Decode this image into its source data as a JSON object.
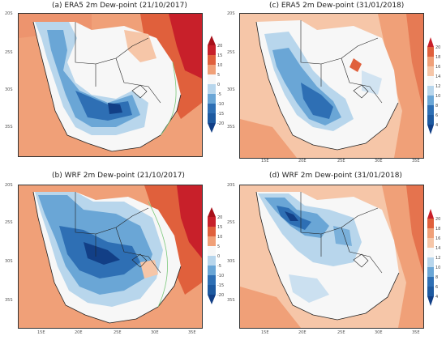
{
  "panels": [
    {
      "id": "a",
      "title": "(a) ERA5 2m Dew-point (21/10/2017)",
      "lat_labels": [
        "20S",
        "25S",
        "30S",
        "35S"
      ],
      "lon_labels": [],
      "colorbar_labels": [
        "20",
        "15",
        "10",
        "5",
        "0",
        "-5",
        "-10",
        "-15",
        "-20"
      ]
    },
    {
      "id": "c",
      "title": "(c) ERA5 2m Dew-point (31/01/2018)",
      "lat_labels": [
        "20S",
        "25S",
        "30S",
        "35S"
      ],
      "lon_labels": [
        "15E",
        "20E",
        "25E",
        "30E",
        "35E"
      ],
      "colorbar_labels": [
        "20",
        "18",
        "16",
        "14",
        "12",
        "10",
        "8",
        "6",
        "4"
      ]
    },
    {
      "id": "b",
      "title": "(b) WRF 2m Dew-point (21/10/2017)",
      "lat_labels": [
        "20S",
        "25S",
        "30S",
        "35S"
      ],
      "lon_labels": [
        "15E",
        "20E",
        "25E",
        "30E",
        "35E"
      ],
      "colorbar_labels": [
        "20",
        "15",
        "10",
        "5",
        "0",
        "-5",
        "-10",
        "-15",
        "-20"
      ]
    },
    {
      "id": "d",
      "title": "(d) WRF 2m Dew-point (31/01/2018)",
      "lat_labels": [
        "20S",
        "25S",
        "30S",
        "35S"
      ],
      "lon_labels": [
        "15E",
        "20E",
        "25E",
        "30E",
        "35E"
      ],
      "colorbar_labels": [
        "20",
        "18",
        "16",
        "14",
        "12",
        "10",
        "8",
        "6",
        "4"
      ]
    }
  ],
  "colors": {
    "ocean": "#f0a078",
    "ocean_light": "#f6c6a8",
    "warm_dark": "#c8202a",
    "warm_mid": "#e0603c",
    "white": "#f7f7f7",
    "blue_light": "#b8d6ec",
    "blue_mid": "#6aa6d6",
    "blue_dark": "#2e6fb4",
    "blue_deep": "#123f86"
  }
}
